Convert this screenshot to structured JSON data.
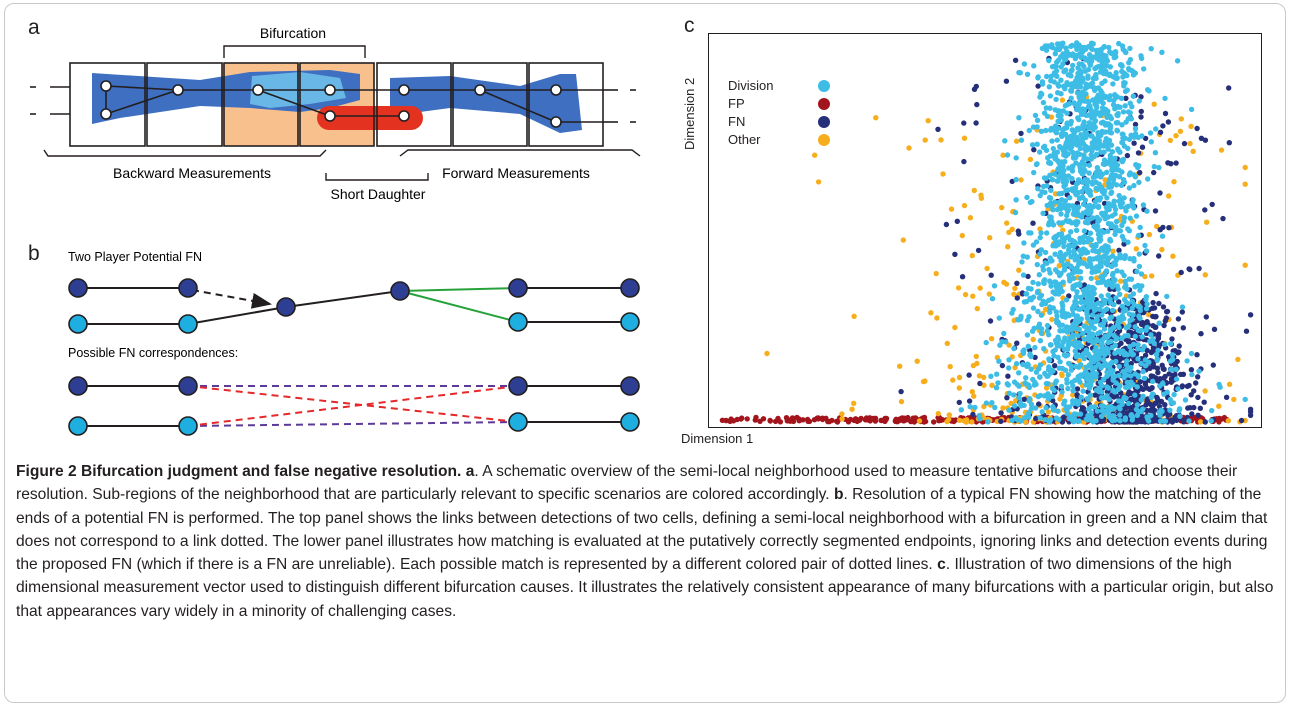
{
  "figure": {
    "panel_a_letter": "a",
    "panel_b_letter": "b",
    "panel_c_letter": "c",
    "panel_a": {
      "bifurcation_label": "Bifurcation",
      "backward_label": "Backward Measurements",
      "short_daughter_label": "Short Daughter",
      "forward_label": "Forward Measurements"
    },
    "panel_b": {
      "top_label": "Two Player Potential FN",
      "bottom_label": "Possible FN correspondences:"
    },
    "panel_c": {
      "xlabel": "Dimension 1",
      "ylabel": "Dimension 2"
    },
    "caption": {
      "title": "Figure 2 Bifurcation judgment and false negative resolution.",
      "a_letter": "a",
      "a_text": ". A schematic overview of the semi-local neighborhood used to measure tentative bifurcations and choose their resolution. Sub-regions of the neighborhood that are particularly relevant to specific scenarios are colored accordingly.",
      "b_letter": "b",
      "b_text": ". Resolution of a typical FN showing how the matching of the ends of a potential FN is performed. The top panel shows the links between detections of two cells, defining a semi-local neighborhood with a bifurcation in green and a NN claim that does not correspond to a link dotted. The lower panel illustrates how matching is evaluated at the putatively correctly segmented endpoints, ignoring links and detection events during the proposed FN (which if there is a FN are unreliable). Each possible match is represented by a different colored pair of dotted lines.",
      "c_letter": "c",
      "c_text": ". Illustration of two dimensions of the high dimensional measurement vector used to distinguish different bifurcation causes. It illustrates the relatively consistent appearance of many bifurcations with a particular origin, but also that appearances vary widely in a minority of challenging cases."
    }
  },
  "chart_data": {
    "type": "scatter",
    "title": "",
    "xlabel": "Dimension 1",
    "ylabel": "Dimension 2",
    "axis_ticks": "none",
    "legend_placement": "top-left",
    "series": [
      {
        "name": "Division",
        "color": "#3dbde6",
        "approx_count": 1900,
        "x_center": 0.69,
        "x_spread": 0.05,
        "y_range": [
          0.0,
          1.0
        ],
        "peak": "narrow vertical band centered near x=0.69"
      },
      {
        "name": "FP",
        "color": "#a3151c",
        "approx_count": 320,
        "x_range": [
          0.0,
          0.95
        ],
        "y_range": [
          0.0,
          0.012
        ],
        "peak": "along the bottom edge"
      },
      {
        "name": "FN",
        "color": "#252f7a",
        "approx_count": 850,
        "x_center": 0.74,
        "x_spread": 0.08,
        "y_range": [
          0.0,
          1.0
        ],
        "peak": "dense lower-right cluster near x=0.76, y=0.1"
      },
      {
        "name": "Other",
        "color": "#f7ae1c",
        "approx_count": 330,
        "x_center": 0.62,
        "x_spread": 0.15,
        "y_range": [
          0.0,
          0.9
        ],
        "peak": "diffuse, concentrated below y=0.3"
      }
    ]
  }
}
